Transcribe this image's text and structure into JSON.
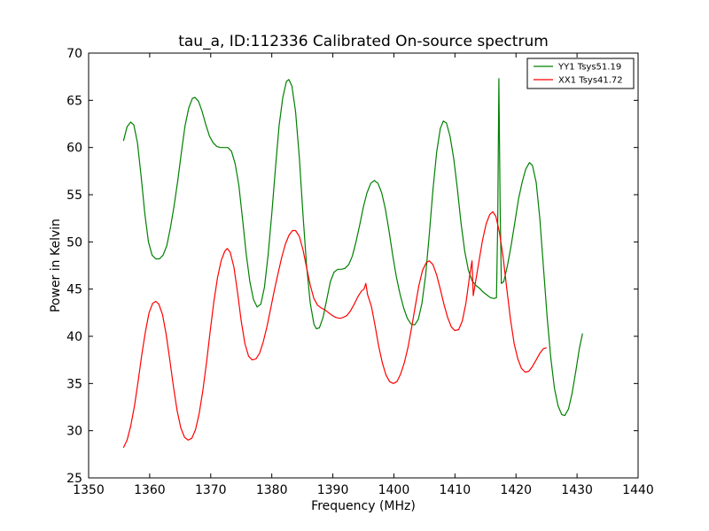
{
  "chart_data": {
    "type": "line",
    "title": "tau_a, ID:112336 Calibrated On-source spectrum",
    "xlabel": "Frequency (MHz)",
    "ylabel": "Power in Kelvin",
    "xlim": [
      1350,
      1440
    ],
    "ylim": [
      25,
      70
    ],
    "xticks": [
      1350,
      1360,
      1370,
      1380,
      1390,
      1400,
      1410,
      1420,
      1430,
      1440
    ],
    "yticks": [
      25,
      30,
      35,
      40,
      45,
      50,
      55,
      60,
      65,
      70
    ],
    "grid": false,
    "legend_position": "top-right",
    "series": [
      {
        "name": "YY1 Tsys51.19",
        "color": "#008000",
        "points": [
          [
            1355.7,
            60.7
          ],
          [
            1356.3,
            62.2
          ],
          [
            1356.9,
            62.7
          ],
          [
            1357.4,
            62.4
          ],
          [
            1358.0,
            60.5
          ],
          [
            1358.6,
            57.0
          ],
          [
            1359.2,
            53.0
          ],
          [
            1359.8,
            50.0
          ],
          [
            1360.4,
            48.6
          ],
          [
            1361.0,
            48.2
          ],
          [
            1361.6,
            48.2
          ],
          [
            1362.2,
            48.6
          ],
          [
            1362.8,
            49.6
          ],
          [
            1363.4,
            51.5
          ],
          [
            1364.0,
            53.8
          ],
          [
            1364.6,
            56.5
          ],
          [
            1365.2,
            59.5
          ],
          [
            1365.8,
            62.3
          ],
          [
            1366.4,
            64.2
          ],
          [
            1367.0,
            65.2
          ],
          [
            1367.4,
            65.3
          ],
          [
            1368.0,
            64.9
          ],
          [
            1368.6,
            63.8
          ],
          [
            1369.2,
            62.4
          ],
          [
            1369.8,
            61.2
          ],
          [
            1370.4,
            60.5
          ],
          [
            1371.0,
            60.1
          ],
          [
            1371.6,
            60.0
          ],
          [
            1372.2,
            60.0
          ],
          [
            1372.8,
            60.0
          ],
          [
            1373.4,
            59.6
          ],
          [
            1374.0,
            58.3
          ],
          [
            1374.6,
            56.0
          ],
          [
            1375.2,
            52.5
          ],
          [
            1375.8,
            48.8
          ],
          [
            1376.4,
            45.8
          ],
          [
            1377.0,
            43.9
          ],
          [
            1377.6,
            43.1
          ],
          [
            1378.2,
            43.4
          ],
          [
            1378.8,
            45.2
          ],
          [
            1379.4,
            48.6
          ],
          [
            1380.0,
            53.0
          ],
          [
            1380.6,
            57.8
          ],
          [
            1381.2,
            62.3
          ],
          [
            1381.8,
            65.3
          ],
          [
            1382.4,
            67.0
          ],
          [
            1382.8,
            67.2
          ],
          [
            1383.3,
            66.5
          ],
          [
            1383.9,
            63.8
          ],
          [
            1384.5,
            59.0
          ],
          [
            1385.1,
            53.0
          ],
          [
            1385.7,
            47.5
          ],
          [
            1386.3,
            43.5
          ],
          [
            1386.9,
            41.3
          ],
          [
            1387.3,
            40.8
          ],
          [
            1387.8,
            40.9
          ],
          [
            1388.4,
            42.0
          ],
          [
            1389.0,
            43.9
          ],
          [
            1389.6,
            45.8
          ],
          [
            1390.2,
            46.8
          ],
          [
            1390.8,
            47.1
          ],
          [
            1391.4,
            47.1
          ],
          [
            1392.0,
            47.2
          ],
          [
            1392.6,
            47.6
          ],
          [
            1393.2,
            48.5
          ],
          [
            1393.8,
            50.0
          ],
          [
            1394.4,
            51.8
          ],
          [
            1395.0,
            53.7
          ],
          [
            1395.6,
            55.2
          ],
          [
            1396.2,
            56.2
          ],
          [
            1396.8,
            56.5
          ],
          [
            1397.4,
            56.2
          ],
          [
            1398.0,
            55.2
          ],
          [
            1398.6,
            53.5
          ],
          [
            1399.2,
            51.2
          ],
          [
            1399.8,
            48.6
          ],
          [
            1400.4,
            46.3
          ],
          [
            1401.0,
            44.5
          ],
          [
            1401.6,
            43.0
          ],
          [
            1402.2,
            41.9
          ],
          [
            1402.8,
            41.3
          ],
          [
            1403.4,
            41.2
          ],
          [
            1404.0,
            41.8
          ],
          [
            1404.6,
            43.5
          ],
          [
            1405.2,
            46.5
          ],
          [
            1405.8,
            50.8
          ],
          [
            1406.4,
            55.5
          ],
          [
            1407.0,
            59.5
          ],
          [
            1407.6,
            62.0
          ],
          [
            1408.1,
            62.8
          ],
          [
            1408.6,
            62.6
          ],
          [
            1409.2,
            61.2
          ],
          [
            1409.8,
            58.8
          ],
          [
            1410.4,
            55.6
          ],
          [
            1411.0,
            52.0
          ],
          [
            1411.6,
            49.0
          ],
          [
            1412.2,
            47.0
          ],
          [
            1412.8,
            45.9
          ],
          [
            1413.4,
            45.4
          ],
          [
            1414.0,
            45.1
          ],
          [
            1414.6,
            44.7
          ],
          [
            1415.2,
            44.4
          ],
          [
            1415.8,
            44.1
          ],
          [
            1416.4,
            44.0
          ],
          [
            1416.8,
            44.1
          ],
          [
            1417.0,
            52.0
          ],
          [
            1417.2,
            67.3
          ],
          [
            1417.4,
            54.0
          ],
          [
            1417.6,
            45.6
          ],
          [
            1418.0,
            45.8
          ],
          [
            1418.6,
            47.5
          ],
          [
            1419.2,
            49.6
          ],
          [
            1419.8,
            52.0
          ],
          [
            1420.4,
            54.5
          ],
          [
            1421.0,
            56.3
          ],
          [
            1421.6,
            57.7
          ],
          [
            1422.2,
            58.4
          ],
          [
            1422.7,
            58.1
          ],
          [
            1423.3,
            56.3
          ],
          [
            1423.9,
            52.5
          ],
          [
            1424.5,
            47.3
          ],
          [
            1425.1,
            42.0
          ],
          [
            1425.7,
            37.7
          ],
          [
            1426.3,
            34.5
          ],
          [
            1426.9,
            32.6
          ],
          [
            1427.5,
            31.7
          ],
          [
            1428.0,
            31.6
          ],
          [
            1428.6,
            32.3
          ],
          [
            1429.2,
            34.0
          ],
          [
            1429.8,
            36.3
          ],
          [
            1430.4,
            38.8
          ],
          [
            1430.9,
            40.3
          ]
        ]
      },
      {
        "name": "XX1 Tsys41.72",
        "color": "#ff0000",
        "points": [
          [
            1355.7,
            28.2
          ],
          [
            1356.3,
            29.0
          ],
          [
            1356.9,
            30.5
          ],
          [
            1357.5,
            32.6
          ],
          [
            1358.1,
            35.2
          ],
          [
            1358.7,
            38.0
          ],
          [
            1359.3,
            40.5
          ],
          [
            1359.9,
            42.5
          ],
          [
            1360.5,
            43.5
          ],
          [
            1361.0,
            43.7
          ],
          [
            1361.5,
            43.4
          ],
          [
            1362.1,
            42.3
          ],
          [
            1362.7,
            40.2
          ],
          [
            1363.3,
            37.5
          ],
          [
            1363.9,
            34.6
          ],
          [
            1364.5,
            32.1
          ],
          [
            1365.1,
            30.3
          ],
          [
            1365.7,
            29.3
          ],
          [
            1366.3,
            29.0
          ],
          [
            1366.9,
            29.2
          ],
          [
            1367.5,
            30.1
          ],
          [
            1368.1,
            31.8
          ],
          [
            1368.7,
            34.2
          ],
          [
            1369.3,
            37.2
          ],
          [
            1369.9,
            40.5
          ],
          [
            1370.5,
            43.6
          ],
          [
            1371.1,
            46.2
          ],
          [
            1371.7,
            48.0
          ],
          [
            1372.3,
            49.0
          ],
          [
            1372.7,
            49.3
          ],
          [
            1373.2,
            48.9
          ],
          [
            1373.8,
            47.3
          ],
          [
            1374.4,
            44.6
          ],
          [
            1375.0,
            41.6
          ],
          [
            1375.6,
            39.2
          ],
          [
            1376.2,
            37.9
          ],
          [
            1376.8,
            37.5
          ],
          [
            1377.4,
            37.6
          ],
          [
            1378.0,
            38.2
          ],
          [
            1378.6,
            39.4
          ],
          [
            1379.2,
            41.0
          ],
          [
            1379.8,
            42.9
          ],
          [
            1380.4,
            44.8
          ],
          [
            1381.0,
            46.6
          ],
          [
            1381.6,
            48.3
          ],
          [
            1382.2,
            49.7
          ],
          [
            1382.8,
            50.7
          ],
          [
            1383.4,
            51.2
          ],
          [
            1383.9,
            51.2
          ],
          [
            1384.5,
            50.6
          ],
          [
            1385.1,
            49.2
          ],
          [
            1385.7,
            47.3
          ],
          [
            1386.3,
            45.4
          ],
          [
            1386.9,
            44.0
          ],
          [
            1387.5,
            43.3
          ],
          [
            1388.1,
            43.0
          ],
          [
            1388.7,
            42.8
          ],
          [
            1389.3,
            42.5
          ],
          [
            1389.9,
            42.2
          ],
          [
            1390.5,
            42.0
          ],
          [
            1391.1,
            41.9
          ],
          [
            1391.7,
            42.0
          ],
          [
            1392.3,
            42.2
          ],
          [
            1392.9,
            42.7
          ],
          [
            1393.5,
            43.4
          ],
          [
            1394.1,
            44.2
          ],
          [
            1394.7,
            44.8
          ],
          [
            1395.1,
            45.0
          ],
          [
            1395.4,
            45.6
          ],
          [
            1395.7,
            44.4
          ],
          [
            1396.3,
            43.2
          ],
          [
            1396.9,
            41.2
          ],
          [
            1397.5,
            39.0
          ],
          [
            1398.1,
            37.2
          ],
          [
            1398.7,
            35.9
          ],
          [
            1399.3,
            35.2
          ],
          [
            1399.9,
            35.0
          ],
          [
            1400.5,
            35.2
          ],
          [
            1401.1,
            36.0
          ],
          [
            1401.7,
            37.2
          ],
          [
            1402.3,
            38.8
          ],
          [
            1402.9,
            40.9
          ],
          [
            1403.5,
            43.2
          ],
          [
            1404.1,
            45.4
          ],
          [
            1404.7,
            47.0
          ],
          [
            1405.3,
            47.8
          ],
          [
            1405.8,
            48.0
          ],
          [
            1406.4,
            47.6
          ],
          [
            1407.0,
            46.5
          ],
          [
            1407.6,
            45.0
          ],
          [
            1408.2,
            43.4
          ],
          [
            1408.8,
            42.0
          ],
          [
            1409.4,
            41.0
          ],
          [
            1410.0,
            40.6
          ],
          [
            1410.6,
            40.7
          ],
          [
            1411.2,
            41.6
          ],
          [
            1411.8,
            43.5
          ],
          [
            1412.4,
            46.4
          ],
          [
            1412.8,
            48.0
          ],
          [
            1413.0,
            44.3
          ],
          [
            1413.3,
            45.5
          ],
          [
            1413.9,
            47.8
          ],
          [
            1414.5,
            50.1
          ],
          [
            1415.1,
            51.9
          ],
          [
            1415.7,
            52.9
          ],
          [
            1416.2,
            53.2
          ],
          [
            1416.7,
            52.7
          ],
          [
            1417.3,
            51.0
          ],
          [
            1417.9,
            48.3
          ],
          [
            1418.5,
            45.0
          ],
          [
            1419.1,
            41.8
          ],
          [
            1419.7,
            39.2
          ],
          [
            1420.3,
            37.6
          ],
          [
            1420.9,
            36.6
          ],
          [
            1421.5,
            36.2
          ],
          [
            1422.1,
            36.3
          ],
          [
            1422.7,
            36.8
          ],
          [
            1423.3,
            37.5
          ],
          [
            1423.9,
            38.2
          ],
          [
            1424.5,
            38.7
          ],
          [
            1425.0,
            38.8
          ]
        ]
      }
    ]
  }
}
